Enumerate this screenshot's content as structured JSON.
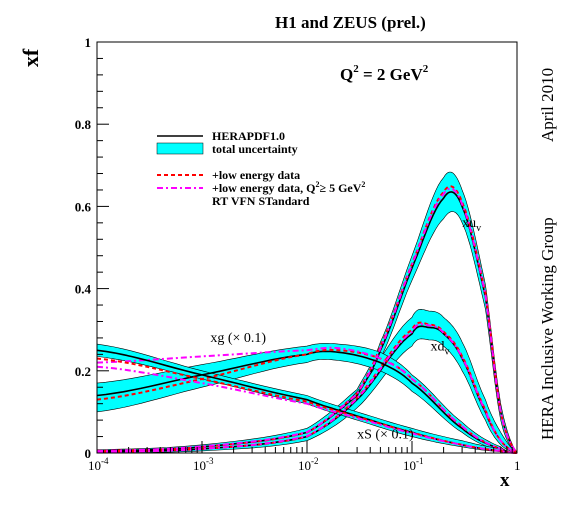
{
  "side_labels": {
    "date": "April 2010",
    "group": "HERA Inclusive Working Group"
  },
  "chart_data": {
    "type": "line",
    "title": "H1 and ZEUS (prel.)",
    "annotation_q2": "Q",
    "annotation_q2_sup": "2",
    "annotation_q2_value": " = 2 GeV",
    "annotation_q2_value_sup": "2",
    "xlabel": "x",
    "ylabel": "xf",
    "x_scale": "log",
    "xlim": [
      0.0001,
      1
    ],
    "ylim": [
      0,
      1
    ],
    "x_ticks": [
      {
        "value": 0.0001,
        "base": "10",
        "exp": "-4"
      },
      {
        "value": 0.001,
        "base": "10",
        "exp": "-3"
      },
      {
        "value": 0.01,
        "base": "10",
        "exp": "-2"
      },
      {
        "value": 0.1,
        "base": "10",
        "exp": "-1"
      },
      {
        "value": 1,
        "base": "1",
        "exp": ""
      }
    ],
    "y_ticks": [
      {
        "value": 0,
        "label": "0"
      },
      {
        "value": 0.2,
        "label": "0.2"
      },
      {
        "value": 0.4,
        "label": "0.4"
      },
      {
        "value": 0.6,
        "label": "0.6"
      },
      {
        "value": 0.8,
        "label": "0.8"
      },
      {
        "value": 1,
        "label": "1"
      }
    ],
    "legend": {
      "placement": "upper-left",
      "entries": [
        {
          "label": "HERAPDF1.0",
          "style": "solid",
          "color": "#000000"
        },
        {
          "label": "total uncertainty",
          "style": "band",
          "color": "#00ffff"
        },
        {
          "label": "+low energy data",
          "style": "dashed",
          "color": "#ff0000"
        },
        {
          "label": "+low energy data, Q",
          "sup": "2",
          "label_tail": "≥ 5 GeV",
          "sup2": "2",
          "style": "dashdot",
          "color": "#ff00ff"
        }
      ],
      "extra_line": "RT VFN STandard"
    },
    "band_color": "#00ffff",
    "band_edge_color": "#000000",
    "series": [
      {
        "name": "xu",
        "sub": "v",
        "label_x": 0.3,
        "label_y": 0.55,
        "x": [
          0.0001,
          0.001,
          0.01,
          0.03,
          0.05,
          0.1,
          0.2,
          0.3,
          0.5,
          0.7,
          1
        ],
        "central": [
          0.005,
          0.015,
          0.05,
          0.14,
          0.25,
          0.45,
          0.62,
          0.6,
          0.38,
          0.1,
          0
        ],
        "upper": [
          0.008,
          0.02,
          0.06,
          0.155,
          0.27,
          0.48,
          0.67,
          0.64,
          0.41,
          0.12,
          0
        ],
        "lower": [
          0.003,
          0.01,
          0.04,
          0.125,
          0.23,
          0.42,
          0.57,
          0.56,
          0.35,
          0.08,
          0
        ],
        "low_energy": [
          0.005,
          0.015,
          0.05,
          0.145,
          0.26,
          0.46,
          0.635,
          0.61,
          0.39,
          0.1,
          0
        ],
        "low_energy_q2cut": [
          0.005,
          0.016,
          0.051,
          0.143,
          0.255,
          0.458,
          0.63,
          0.605,
          0.385,
          0.1,
          0
        ]
      },
      {
        "name": "xd",
        "sub": "v",
        "label_x": 0.15,
        "label_y": 0.25,
        "x": [
          0.0001,
          0.001,
          0.01,
          0.03,
          0.1,
          0.15,
          0.2,
          0.3,
          0.5,
          0.7,
          1
        ],
        "central": [
          0.003,
          0.01,
          0.04,
          0.13,
          0.29,
          0.305,
          0.29,
          0.23,
          0.1,
          0.03,
          0
        ],
        "upper": [
          0.005,
          0.015,
          0.05,
          0.15,
          0.33,
          0.345,
          0.33,
          0.27,
          0.13,
          0.05,
          0
        ],
        "lower": [
          0.001,
          0.005,
          0.03,
          0.11,
          0.26,
          0.275,
          0.26,
          0.2,
          0.08,
          0.02,
          0
        ],
        "low_energy": [
          0.003,
          0.01,
          0.04,
          0.135,
          0.3,
          0.312,
          0.295,
          0.235,
          0.105,
          0.03,
          0
        ],
        "low_energy_q2cut": [
          0.003,
          0.01,
          0.041,
          0.133,
          0.295,
          0.31,
          0.292,
          0.232,
          0.103,
          0.03,
          0
        ]
      },
      {
        "name": "xg (× 0.1)",
        "sub": "",
        "label_x": 0.0012,
        "label_y": 0.27,
        "x": [
          0.0001,
          0.001,
          0.01,
          0.02,
          0.05,
          0.1,
          0.3,
          0.7,
          1
        ],
        "central": [
          0.14,
          0.19,
          0.24,
          0.245,
          0.22,
          0.17,
          0.06,
          0.01,
          0
        ],
        "upper": [
          0.17,
          0.215,
          0.26,
          0.265,
          0.245,
          0.19,
          0.075,
          0.015,
          0
        ],
        "lower": [
          0.1,
          0.16,
          0.22,
          0.225,
          0.2,
          0.15,
          0.05,
          0.005,
          0
        ],
        "low_energy": [
          0.13,
          0.18,
          0.24,
          0.25,
          0.23,
          0.18,
          0.065,
          0.01,
          0
        ],
        "low_energy_q2cut": [
          0.22,
          0.235,
          0.25,
          0.255,
          0.23,
          0.18,
          0.065,
          0.01,
          0
        ]
      },
      {
        "name": "xS (× 0.1)",
        "sub": "",
        "label_x": 0.03,
        "label_y": 0.035,
        "x": [
          0.0001,
          0.001,
          0.01,
          0.03,
          0.1,
          0.3,
          0.7,
          1
        ],
        "central": [
          0.25,
          0.19,
          0.13,
          0.09,
          0.05,
          0.02,
          0.005,
          0
        ],
        "upper": [
          0.265,
          0.2,
          0.14,
          0.1,
          0.06,
          0.03,
          0.01,
          0
        ],
        "lower": [
          0.235,
          0.18,
          0.12,
          0.08,
          0.04,
          0.015,
          0.003,
          0
        ],
        "low_energy": [
          0.23,
          0.18,
          0.125,
          0.088,
          0.05,
          0.02,
          0.005,
          0
        ],
        "low_energy_q2cut": [
          0.21,
          0.17,
          0.12,
          0.085,
          0.048,
          0.02,
          0.005,
          0
        ]
      }
    ],
    "grid": false
  }
}
